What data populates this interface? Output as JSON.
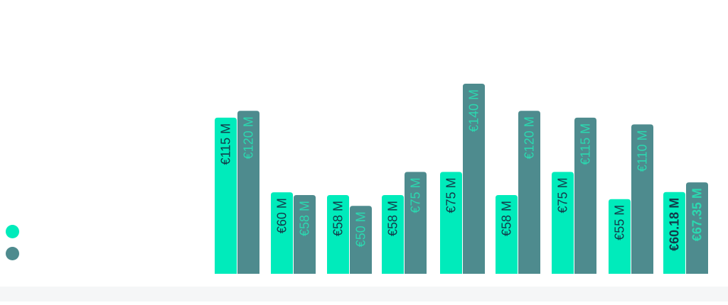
{
  "colors": {
    "series_a": "#00ebbb",
    "series_b": "#4e8b8e",
    "label_on_a": "#123b4a",
    "label_on_b": "#2bd9b0"
  },
  "chart_data": {
    "type": "bar",
    "categories": [
      "",
      "",
      "",
      "",
      "",
      "",
      "",
      "",
      ""
    ],
    "ylim": [
      0,
      140
    ],
    "grid": false,
    "legend_position": "left",
    "series": [
      {
        "name": "",
        "color": "#00ebbb",
        "values": [
          115,
          60,
          58,
          58,
          75,
          58,
          75,
          55,
          60.18
        ],
        "labels": [
          "€115 M",
          "€60 M",
          "€58 M",
          "€58 M",
          "€75 M",
          "€58 M",
          "€75 M",
          "€55 M",
          "€60.18 M"
        ]
      },
      {
        "name": "",
        "color": "#4e8b8e",
        "values": [
          120,
          58,
          50,
          75,
          140,
          120,
          115,
          110,
          67.35
        ],
        "labels": [
          "€120 M",
          "€58 M",
          "€50 M",
          "€75 M",
          "€140 M",
          "€120 M",
          "€115 M",
          "€110 M",
          "€67.35 M"
        ]
      }
    ],
    "highlight_index": 8
  }
}
